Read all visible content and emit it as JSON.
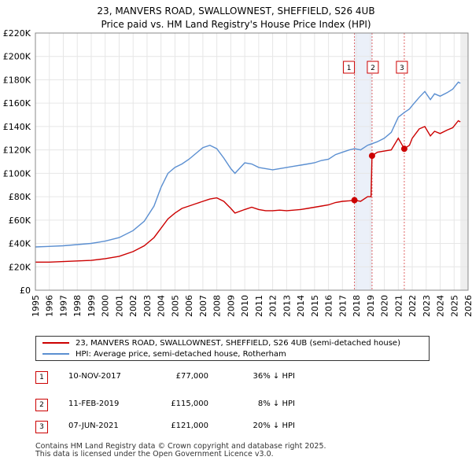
{
  "title": {
    "line1": "23, MANVERS ROAD, SWALLOWNEST, SHEFFIELD, S26 4UB",
    "line2": "Price paid vs. HM Land Registry's House Price Index (HPI)"
  },
  "colors": {
    "property": "#cc0000",
    "hpi": "#5b8fd1",
    "shade": "#dde6f5",
    "grid": "#e6e6e6"
  },
  "chart_data": {
    "type": "line",
    "ylim": [
      0,
      220000
    ],
    "xlim": [
      1995,
      2026
    ],
    "yticks": [
      {
        "value": 0,
        "label": "£0"
      },
      {
        "value": 20000,
        "label": "£20K"
      },
      {
        "value": 40000,
        "label": "£40K"
      },
      {
        "value": 60000,
        "label": "£60K"
      },
      {
        "value": 80000,
        "label": "£80K"
      },
      {
        "value": 100000,
        "label": "£100K"
      },
      {
        "value": 120000,
        "label": "£120K"
      },
      {
        "value": 140000,
        "label": "£140K"
      },
      {
        "value": 160000,
        "label": "£160K"
      },
      {
        "value": 180000,
        "label": "£180K"
      },
      {
        "value": 200000,
        "label": "£200K"
      },
      {
        "value": 220000,
        "label": "£220K"
      }
    ],
    "xticks": [
      "1995",
      "1996",
      "1997",
      "1998",
      "1999",
      "2000",
      "2001",
      "2002",
      "2003",
      "2004",
      "2005",
      "2006",
      "2007",
      "2008",
      "2009",
      "2010",
      "2011",
      "2012",
      "2013",
      "2014",
      "2015",
      "2016",
      "2017",
      "2018",
      "2019",
      "2020",
      "2021",
      "2022",
      "2023",
      "2024",
      "2025",
      "2026"
    ],
    "series": [
      {
        "name": "23, MANVERS ROAD, SWALLOWNEST, SHEFFIELD, S26 4UB (semi-detached house)",
        "x": [
          1995.0,
          1996.0,
          1997.0,
          1998.0,
          1999.0,
          2000.0,
          2001.0,
          2002.0,
          2002.8,
          2003.5,
          2004.0,
          2004.5,
          2005.0,
          2005.5,
          2006.0,
          2006.5,
          2007.0,
          2007.5,
          2008.0,
          2008.5,
          2009.0,
          2009.3,
          2010.0,
          2010.5,
          2011.0,
          2011.5,
          2012.0,
          2012.5,
          2013.0,
          2013.5,
          2014.0,
          2014.5,
          2015.0,
          2015.5,
          2016.0,
          2016.5,
          2017.0,
          2017.5,
          2017.86,
          2018.3,
          2018.8,
          2019.05,
          2019.12,
          2019.5,
          2020.0,
          2020.5,
          2021.0,
          2021.43,
          2021.8,
          2022.0,
          2022.5,
          2022.9,
          2023.3,
          2023.6,
          2024.0,
          2024.5,
          2024.9,
          2025.3,
          2025.45
        ],
        "values": [
          24000,
          24000,
          24500,
          25000,
          25500,
          27000,
          29000,
          33000,
          38000,
          45000,
          53000,
          61000,
          66000,
          70000,
          72000,
          74000,
          76000,
          78000,
          79000,
          76000,
          70000,
          66000,
          69000,
          71000,
          69000,
          68000,
          68000,
          68500,
          68000,
          68500,
          69000,
          70000,
          71000,
          72000,
          73000,
          75000,
          76000,
          76500,
          77000,
          76000,
          80000,
          80000,
          115000,
          118000,
          119000,
          120000,
          130000,
          121000,
          124000,
          130000,
          138000,
          140000,
          132000,
          136000,
          134000,
          137000,
          139000,
          145000,
          144000
        ]
      },
      {
        "name": "HPI: Average price, semi-detached house, Rotherham",
        "x": [
          1995.0,
          1996.0,
          1997.0,
          1998.0,
          1999.0,
          2000.0,
          2001.0,
          2002.0,
          2002.8,
          2003.5,
          2004.0,
          2004.5,
          2005.0,
          2005.5,
          2006.0,
          2006.5,
          2007.0,
          2007.5,
          2008.0,
          2008.5,
          2009.0,
          2009.3,
          2010.0,
          2010.5,
          2011.0,
          2011.5,
          2012.0,
          2012.5,
          2013.0,
          2013.5,
          2014.0,
          2014.5,
          2015.0,
          2015.5,
          2016.0,
          2016.5,
          2017.0,
          2017.5,
          2017.86,
          2018.3,
          2018.8,
          2019.05,
          2019.5,
          2020.0,
          2020.5,
          2021.0,
          2021.43,
          2021.8,
          2022.0,
          2022.5,
          2022.9,
          2023.3,
          2023.6,
          2024.0,
          2024.5,
          2024.9,
          2025.3,
          2025.45
        ],
        "values": [
          37000,
          37500,
          38000,
          39000,
          40000,
          42000,
          45000,
          51000,
          59000,
          72000,
          88000,
          100000,
          105000,
          108000,
          112000,
          117000,
          122000,
          124000,
          121000,
          113000,
          104000,
          100000,
          109000,
          108000,
          105000,
          104000,
          103000,
          104000,
          105000,
          106000,
          107000,
          108000,
          109000,
          111000,
          112000,
          116000,
          118000,
          120000,
          121000,
          120000,
          124000,
          125000,
          127000,
          130000,
          135000,
          148000,
          152000,
          155000,
          158000,
          165000,
          170000,
          163000,
          168000,
          166000,
          169000,
          172000,
          178000,
          177000
        ]
      }
    ],
    "sales": [
      {
        "id": "1",
        "x": 2017.86,
        "value": 77000
      },
      {
        "id": "2",
        "x": 2019.12,
        "value": 115000
      },
      {
        "id": "3",
        "x": 2021.43,
        "value": 121000
      }
    ]
  },
  "legend": {
    "property_label": "23, MANVERS ROAD, SWALLOWNEST, SHEFFIELD, S26 4UB (semi-detached house)",
    "hpi_label": "HPI: Average price, semi-detached house, Rotherham"
  },
  "sales_table": [
    {
      "id": "1",
      "date": "10-NOV-2017",
      "price": "£77,000",
      "hpi": "36% ↓ HPI"
    },
    {
      "id": "2",
      "date": "11-FEB-2019",
      "price": "£115,000",
      "hpi": "8% ↓ HPI"
    },
    {
      "id": "3",
      "date": "07-JUN-2021",
      "price": "£121,000",
      "hpi": "20% ↓ HPI"
    }
  ],
  "footer": {
    "line1": "Contains HM Land Registry data © Crown copyright and database right 2025.",
    "line2": "This data is licensed under the Open Government Licence v3.0."
  }
}
